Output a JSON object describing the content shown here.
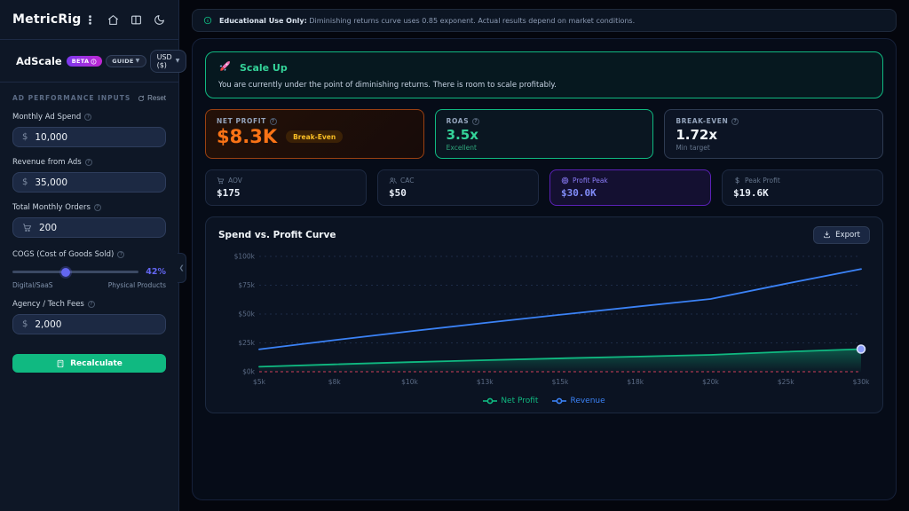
{
  "sidebar": {
    "brand": "MetricRig",
    "app": {
      "name": "AdScale",
      "beta": "BETA",
      "guide": "GUIDE",
      "currency": "USD ($)"
    },
    "section_title": "AD PERFORMANCE INPUTS",
    "reset_label": "Reset",
    "fields": [
      {
        "label": "Monthly Ad Spend",
        "prefix": "$",
        "value": "10,000"
      },
      {
        "label": "Revenue from Ads",
        "prefix": "$",
        "value": "35,000"
      },
      {
        "label": "Total Monthly Orders",
        "prefix": "",
        "value": "200"
      },
      {
        "label": "Agency / Tech Fees",
        "prefix": "$",
        "value": "2,000"
      }
    ],
    "cogs": {
      "label": "COGS (Cost of Goods Sold)",
      "percent": 42,
      "value": "42%",
      "left": "Digital/SaaS",
      "right": "Physical Products"
    },
    "recalculate": "Recalculate"
  },
  "top_banner": {
    "bold": "Educational Use Only:",
    "text": " Diminishing returns curve uses 0.85 exponent. Actual results depend on market conditions."
  },
  "alert": {
    "title": "Scale Up",
    "text": "You are currently under the point of diminishing returns. There is room to scale profitably."
  },
  "metrics": {
    "net_profit": {
      "label": "NET PROFIT",
      "value": "$8.3K",
      "badge": "Break-Even"
    },
    "roas": {
      "label": "ROAS",
      "value": "3.5x",
      "sub": "Excellent"
    },
    "break_even": {
      "label": "BREAK-EVEN",
      "value": "1.72x",
      "sub": "Min target"
    },
    "aov": {
      "label": "AOV",
      "value": "$175"
    },
    "cac": {
      "label": "CAC",
      "value": "$50"
    },
    "profit_peak": {
      "label": "Profit Peak",
      "value": "$30.0K"
    },
    "peak_profit": {
      "label": "Peak Profit",
      "value": "$19.6K"
    }
  },
  "chart": {
    "title": "Spend vs. Profit Curve",
    "export_label": "Export"
  },
  "chart_data": {
    "type": "line",
    "title": "Spend vs. Profit Curve",
    "x_labels": [
      "$5k",
      "$8k",
      "$10k",
      "$13k",
      "$15k",
      "$18k",
      "$20k",
      "$25k",
      "$30k"
    ],
    "x_values_spend_k": [
      5,
      7.5,
      10,
      12.5,
      15,
      17.5,
      20,
      25,
      30
    ],
    "y_ticks": [
      "$0k",
      "$25k",
      "$50k",
      "$75k",
      "$100k"
    ],
    "ylim_k": [
      0,
      100
    ],
    "series": [
      {
        "name": "Net Profit",
        "color": "#10b981",
        "area": true,
        "end_marker": true,
        "values_k": [
          4.3,
          6.4,
          8.3,
          10.0,
          11.6,
          13.1,
          14.6,
          17.3,
          19.6
        ]
      },
      {
        "name": "Revenue",
        "color": "#3b82f6",
        "area": false,
        "end_marker": false,
        "values_k": [
          19.4,
          27.4,
          35.0,
          42.3,
          49.4,
          56.3,
          63.1,
          76.3,
          89.0
        ]
      }
    ],
    "reference_line": {
      "value_k": 0,
      "color": "#f43f5e",
      "style": "dashed"
    },
    "legend_position": "bottom",
    "grid": true
  },
  "colors": {
    "accent_green": "#10b981",
    "accent_blue": "#3b82f6",
    "accent_orange": "#f97316",
    "accent_purple": "#8b5cf6",
    "accent_indigo": "#818cf8",
    "danger": "#f43f5e"
  }
}
